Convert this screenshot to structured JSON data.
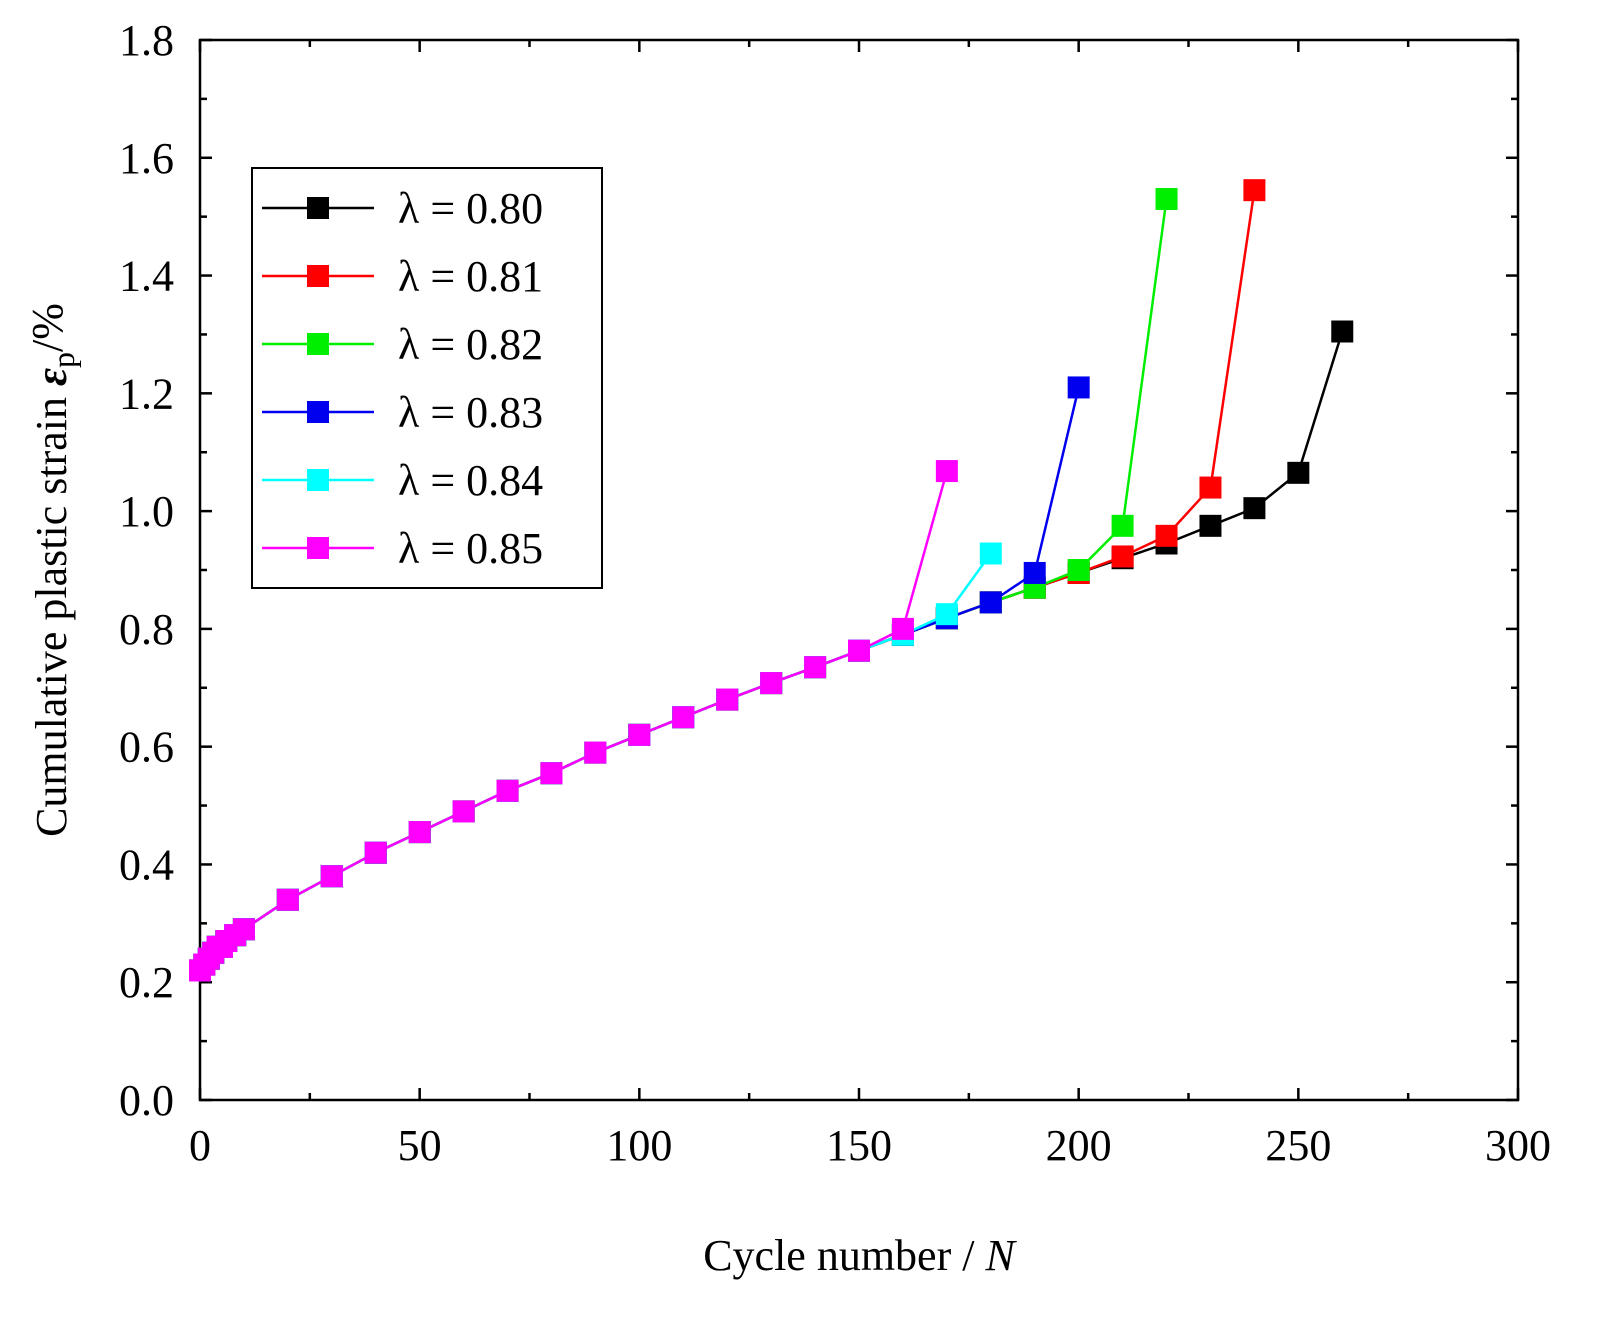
{
  "chart_data": {
    "type": "line",
    "title": "",
    "xlabel": "Cycle number / ",
    "xlabel_italic": "N",
    "ylabel": "Cumulative plastic strain ",
    "ylabel_symbol": "ε",
    "ylabel_subscript": "p",
    "ylabel_unit": "/%",
    "xlim": [
      0,
      300
    ],
    "ylim": [
      0.0,
      1.8
    ],
    "xticks": [
      "0",
      "50",
      "100",
      "150",
      "200",
      "250",
      "300"
    ],
    "yticks": [
      "0.0",
      "0.2",
      "0.4",
      "0.6",
      "0.8",
      "1.0",
      "1.2",
      "1.4",
      "1.6",
      "1.8"
    ],
    "xtick_values": [
      0,
      50,
      100,
      150,
      200,
      250,
      300
    ],
    "ytick_values": [
      0.0,
      0.2,
      0.4,
      0.6,
      0.8,
      1.0,
      1.2,
      1.4,
      1.6,
      1.8
    ],
    "legend_position": "top-left",
    "series": [
      {
        "name": "λ = 0.80",
        "color": "#000000",
        "x": [
          0,
          1,
          2,
          3,
          4,
          5,
          6,
          8,
          10,
          20,
          30,
          40,
          50,
          60,
          70,
          80,
          90,
          100,
          110,
          120,
          130,
          140,
          150,
          160,
          170,
          180,
          190,
          200,
          210,
          220,
          230,
          240,
          250,
          260
        ],
        "y": [
          0.22,
          0.23,
          0.24,
          0.25,
          0.26,
          0.26,
          0.27,
          0.28,
          0.29,
          0.34,
          0.38,
          0.42,
          0.455,
          0.49,
          0.525,
          0.555,
          0.59,
          0.62,
          0.65,
          0.68,
          0.708,
          0.735,
          0.763,
          0.79,
          0.818,
          0.845,
          0.87,
          0.895,
          0.92,
          0.945,
          0.975,
          1.005,
          1.065,
          1.305
        ]
      },
      {
        "name": "λ = 0.81",
        "color": "#ff0000",
        "x": [
          0,
          1,
          2,
          3,
          4,
          5,
          6,
          8,
          10,
          20,
          30,
          40,
          50,
          60,
          70,
          80,
          90,
          100,
          110,
          120,
          130,
          140,
          150,
          160,
          170,
          180,
          190,
          200,
          210,
          220,
          230,
          240
        ],
        "y": [
          0.22,
          0.23,
          0.24,
          0.25,
          0.26,
          0.26,
          0.27,
          0.28,
          0.29,
          0.34,
          0.38,
          0.42,
          0.455,
          0.49,
          0.525,
          0.555,
          0.59,
          0.62,
          0.65,
          0.68,
          0.708,
          0.735,
          0.763,
          0.79,
          0.818,
          0.845,
          0.87,
          0.895,
          0.923,
          0.958,
          1.04,
          1.545
        ]
      },
      {
        "name": "λ = 0.82",
        "color": "#00ee00",
        "x": [
          0,
          1,
          2,
          3,
          4,
          5,
          6,
          8,
          10,
          20,
          30,
          40,
          50,
          60,
          70,
          80,
          90,
          100,
          110,
          120,
          130,
          140,
          150,
          160,
          170,
          180,
          190,
          200,
          210,
          220
        ],
        "y": [
          0.22,
          0.23,
          0.24,
          0.25,
          0.26,
          0.26,
          0.27,
          0.28,
          0.29,
          0.34,
          0.38,
          0.42,
          0.455,
          0.49,
          0.525,
          0.555,
          0.59,
          0.62,
          0.65,
          0.68,
          0.708,
          0.735,
          0.763,
          0.79,
          0.818,
          0.845,
          0.87,
          0.9,
          0.975,
          1.53
        ]
      },
      {
        "name": "λ = 0.83",
        "color": "#0000ee",
        "x": [
          0,
          1,
          2,
          3,
          4,
          5,
          6,
          8,
          10,
          20,
          30,
          40,
          50,
          60,
          70,
          80,
          90,
          100,
          110,
          120,
          130,
          140,
          150,
          160,
          170,
          180,
          190,
          200
        ],
        "y": [
          0.22,
          0.23,
          0.24,
          0.25,
          0.26,
          0.26,
          0.27,
          0.28,
          0.29,
          0.34,
          0.38,
          0.42,
          0.455,
          0.49,
          0.525,
          0.555,
          0.59,
          0.62,
          0.65,
          0.68,
          0.708,
          0.735,
          0.763,
          0.79,
          0.818,
          0.845,
          0.895,
          1.21
        ]
      },
      {
        "name": "λ = 0.84",
        "color": "#00ffff",
        "x": [
          0,
          1,
          2,
          3,
          4,
          5,
          6,
          8,
          10,
          20,
          30,
          40,
          50,
          60,
          70,
          80,
          90,
          100,
          110,
          120,
          130,
          140,
          150,
          160,
          170,
          180
        ],
        "y": [
          0.22,
          0.23,
          0.24,
          0.25,
          0.26,
          0.26,
          0.27,
          0.28,
          0.29,
          0.34,
          0.38,
          0.42,
          0.455,
          0.49,
          0.525,
          0.555,
          0.59,
          0.62,
          0.65,
          0.68,
          0.708,
          0.735,
          0.763,
          0.79,
          0.825,
          0.928
        ]
      },
      {
        "name": "λ = 0.85",
        "color": "#ff00ff",
        "x": [
          0,
          1,
          2,
          3,
          4,
          5,
          6,
          8,
          10,
          20,
          30,
          40,
          50,
          60,
          70,
          80,
          90,
          100,
          110,
          120,
          130,
          140,
          150,
          160,
          170
        ],
        "y": [
          0.22,
          0.23,
          0.24,
          0.25,
          0.26,
          0.26,
          0.27,
          0.28,
          0.29,
          0.34,
          0.38,
          0.42,
          0.455,
          0.49,
          0.525,
          0.555,
          0.59,
          0.62,
          0.65,
          0.68,
          0.708,
          0.735,
          0.763,
          0.8,
          1.068
        ]
      }
    ]
  }
}
